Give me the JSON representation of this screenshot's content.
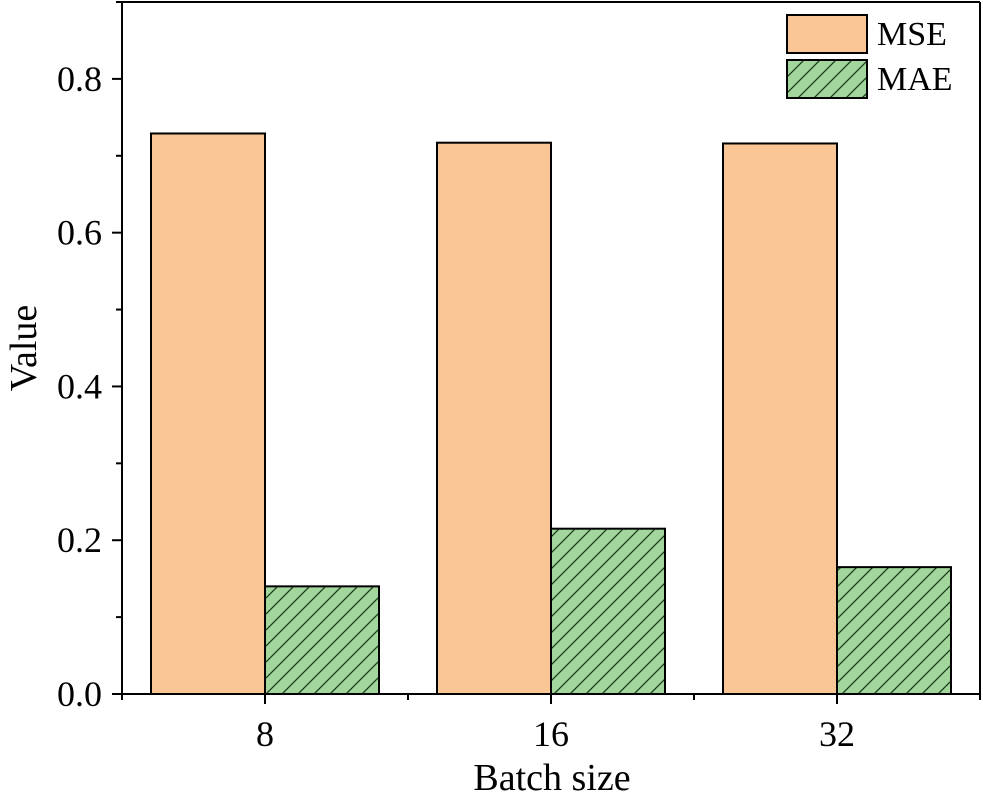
{
  "chart_data": {
    "type": "bar",
    "xlabel": "Batch size",
    "ylabel": "Value",
    "categories": [
      "8",
      "16",
      "32"
    ],
    "ylim": [
      0,
      0.9
    ],
    "yticks": [
      "0.0",
      "0.2",
      "0.4",
      "0.6",
      "0.8"
    ],
    "series": [
      {
        "name": "MSE",
        "values": [
          0.729,
          0.717,
          0.716
        ],
        "color": "#fbc696",
        "pattern": "solid"
      },
      {
        "name": "MAE",
        "values": [
          0.14,
          0.215,
          0.165
        ],
        "color": "#a2d69c",
        "pattern": "diagonal-hatch"
      }
    ],
    "legend_position": "top-right",
    "grid": false
  }
}
